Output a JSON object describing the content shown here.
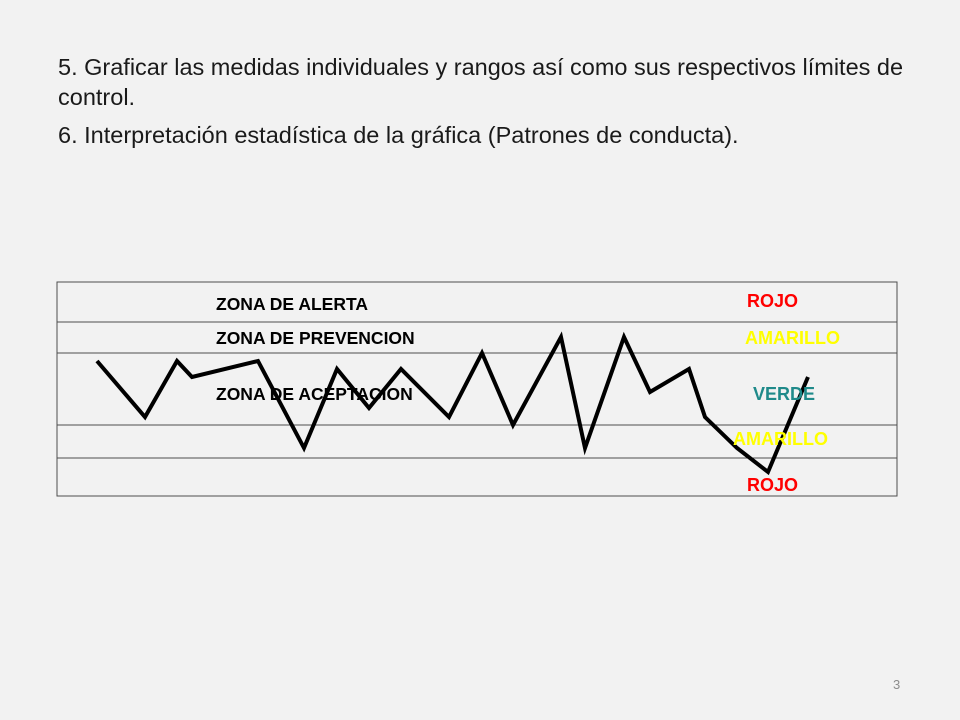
{
  "slide": {
    "items": [
      "5. Graficar las medidas individuales y rangos así como sus respectivos límites de control.",
      "6. Interpretación estadística de la gráfica (Patrones de conducta)."
    ],
    "page_number": "3"
  },
  "control_chart": {
    "zone_labels": {
      "alerta": "ZONA DE ALERTA",
      "prevencion": "ZONA DE PREVENCION",
      "aceptacion": "ZONA DE ACEPTACION"
    },
    "color_labels": {
      "top_rojo": "ROJO",
      "top_amarillo": "AMARILLO",
      "verde": "VERDE",
      "bottom_amarillo": "AMARILLO",
      "bottom_rojo": "ROJO"
    },
    "colors": {
      "rojo": "#ff0000",
      "amarillo": "#ffff00",
      "verde": "#1f8a8a",
      "line": "#000000",
      "border": "#4d4d4d"
    }
  }
}
